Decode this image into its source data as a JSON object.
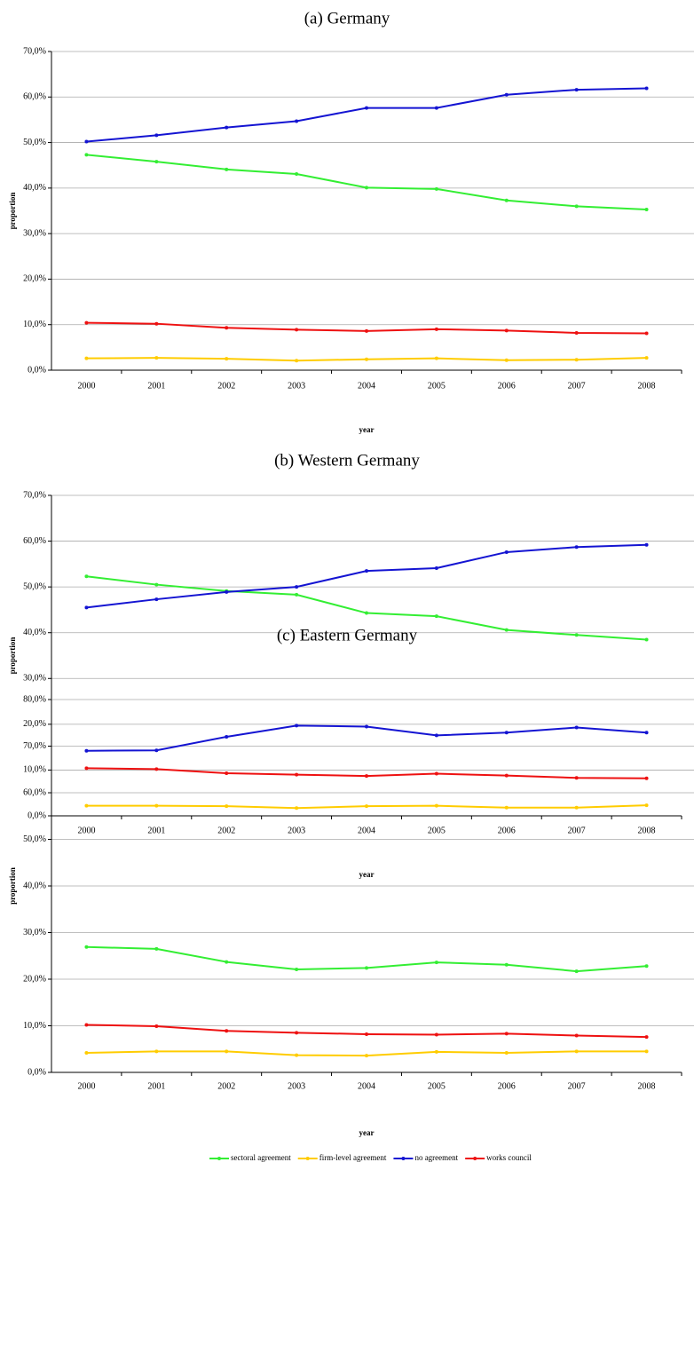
{
  "chart_data": [
    {
      "type": "line",
      "title": "(a) Germany",
      "x_label": "year",
      "y_label": "proportion",
      "categories": [
        "2000",
        "2001",
        "2002",
        "2003",
        "2004",
        "2005",
        "2006",
        "2007",
        "2008"
      ],
      "ylim": [
        0,
        70
      ],
      "grid": true,
      "yticks": [
        {
          "value": 0,
          "label": "0,0%"
        },
        {
          "value": 10,
          "label": "10,0%"
        },
        {
          "value": 20,
          "label": "20,0%"
        },
        {
          "value": 30,
          "label": "30,0%"
        },
        {
          "value": 40,
          "label": "40,0%"
        },
        {
          "value": 50,
          "label": "50,0%"
        },
        {
          "value": 60,
          "label": "60,0%"
        },
        {
          "value": 70,
          "label": "70,0%"
        }
      ],
      "series": [
        {
          "name": "sectoral agreement",
          "color": "#33ee33",
          "values": [
            47.3,
            45.8,
            44.1,
            43.1,
            40.1,
            39.8,
            37.3,
            36.0,
            35.3
          ]
        },
        {
          "name": "firm-level agreement",
          "color": "#ffcc00",
          "values": [
            2.6,
            2.7,
            2.5,
            2.1,
            2.4,
            2.6,
            2.2,
            2.3,
            2.7
          ]
        },
        {
          "name": "no agreement",
          "color": "#1414d2",
          "values": [
            50.2,
            51.6,
            53.3,
            54.7,
            57.6,
            57.6,
            60.5,
            61.6,
            61.9
          ]
        },
        {
          "name": "works council",
          "color": "#ee1111",
          "values": [
            10.4,
            10.2,
            9.3,
            8.9,
            8.6,
            9.0,
            8.7,
            8.2,
            8.1
          ]
        }
      ]
    },
    {
      "type": "line",
      "title": "(b) Western Germany",
      "x_label": "year",
      "y_label": "proportion",
      "categories": [
        "2000",
        "2001",
        "2002",
        "2003",
        "2004",
        "2005",
        "2006",
        "2007",
        "2008"
      ],
      "ylim": [
        0,
        70
      ],
      "grid": true,
      "yticks": [
        {
          "value": 0,
          "label": "0,0%"
        },
        {
          "value": 10,
          "label": "10,0%"
        },
        {
          "value": 20,
          "label": "20,0%"
        },
        {
          "value": 30,
          "label": "30,0%"
        },
        {
          "value": 40,
          "label": "40,0%"
        },
        {
          "value": 50,
          "label": "50,0%"
        },
        {
          "value": 60,
          "label": "60,0%"
        },
        {
          "value": 70,
          "label": "70,0%"
        }
      ],
      "series": [
        {
          "name": "sectoral agreement",
          "color": "#33ee33",
          "values": [
            52.3,
            50.5,
            49.1,
            48.3,
            44.3,
            43.6,
            40.6,
            39.5,
            38.5
          ]
        },
        {
          "name": "firm-level agreement",
          "color": "#ffcc00",
          "values": [
            2.2,
            2.2,
            2.1,
            1.7,
            2.1,
            2.2,
            1.8,
            1.8,
            2.3
          ]
        },
        {
          "name": "no agreement",
          "color": "#1414d2",
          "values": [
            45.5,
            47.3,
            48.9,
            50.0,
            53.5,
            54.1,
            57.6,
            58.7,
            59.2
          ]
        },
        {
          "name": "works council",
          "color": "#ee1111",
          "values": [
            10.4,
            10.2,
            9.3,
            9.0,
            8.7,
            9.2,
            8.8,
            8.3,
            8.2
          ]
        }
      ]
    },
    {
      "type": "line",
      "title": "(c) Eastern Germany",
      "x_label": "year",
      "y_label": "proportion",
      "categories": [
        "2000",
        "2001",
        "2002",
        "2003",
        "2004",
        "2005",
        "2006",
        "2007",
        "2008"
      ],
      "ylim": [
        0,
        80
      ],
      "grid": true,
      "legend": "bottom",
      "yticks": [
        {
          "value": 0,
          "label": "0,0%"
        },
        {
          "value": 10,
          "label": "10,0%"
        },
        {
          "value": 20,
          "label": "20,0%"
        },
        {
          "value": 30,
          "label": "30,0%"
        },
        {
          "value": 40,
          "label": "40,0%"
        },
        {
          "value": 50,
          "label": "50,0%"
        },
        {
          "value": 60,
          "label": "60,0%"
        },
        {
          "value": 70,
          "label": "70,0%"
        },
        {
          "value": 80,
          "label": "80,0%"
        }
      ],
      "series": [
        {
          "name": "sectoral agreement",
          "color": "#33ee33",
          "values": [
            26.9,
            26.5,
            23.7,
            22.1,
            22.4,
            23.6,
            23.1,
            21.7,
            22.8
          ]
        },
        {
          "name": "firm-level agreement",
          "color": "#ffcc00",
          "values": [
            4.2,
            4.5,
            4.5,
            3.7,
            3.6,
            4.4,
            4.2,
            4.5,
            4.5
          ]
        },
        {
          "name": "no agreement",
          "color": "#1414d2",
          "values": [
            69.0,
            69.1,
            72.0,
            74.4,
            74.2,
            72.3,
            72.9,
            74.0,
            72.9
          ]
        },
        {
          "name": "works council",
          "color": "#ee1111",
          "values": [
            10.2,
            9.9,
            8.9,
            8.5,
            8.2,
            8.1,
            8.3,
            7.9,
            7.6
          ]
        }
      ]
    }
  ]
}
